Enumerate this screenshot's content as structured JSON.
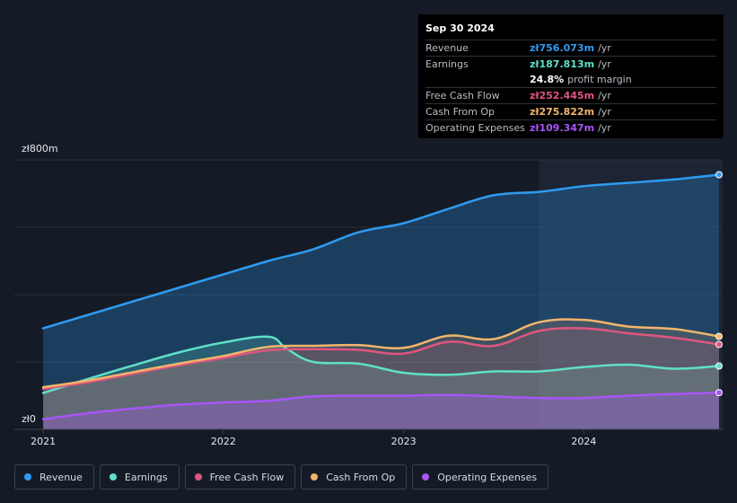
{
  "tooltip": {
    "date": "Sep 30 2024",
    "rows": [
      {
        "label": "Revenue",
        "value": "zł756.073m",
        "unit": "/yr",
        "color": "#2f9bf0"
      },
      {
        "label": "Earnings",
        "value": "zł187.813m",
        "unit": "/yr",
        "color": "#5fe0c8"
      },
      {
        "label": "",
        "value": "24.8%",
        "unit": "profit margin",
        "color": "#ffffff"
      },
      {
        "label": "Free Cash Flow",
        "value": "zł252.445m",
        "unit": "/yr",
        "color": "#e0557f"
      },
      {
        "label": "Cash From Op",
        "value": "zł275.822m",
        "unit": "/yr",
        "color": "#f1b56a"
      },
      {
        "label": "Operating Expenses",
        "value": "zł109.347m",
        "unit": "/yr",
        "color": "#a855f7"
      }
    ]
  },
  "legend": [
    {
      "label": "Revenue",
      "color": "#2f9bf0"
    },
    {
      "label": "Earnings",
      "color": "#5fe0c8"
    },
    {
      "label": "Free Cash Flow",
      "color": "#e0557f"
    },
    {
      "label": "Cash From Op",
      "color": "#f1b56a"
    },
    {
      "label": "Operating Expenses",
      "color": "#a855f7"
    }
  ],
  "chart_data": {
    "type": "area",
    "title": "",
    "xlabel": "",
    "ylabel": "",
    "ylim": [
      0,
      800
    ],
    "y_tick_labels": [
      "zł800m",
      "zł0"
    ],
    "x_ticks": [
      {
        "label": "2021",
        "x": 2021.0
      },
      {
        "label": "2022",
        "x": 2022.0
      },
      {
        "label": "2023",
        "x": 2023.0
      },
      {
        "label": "2024",
        "x": 2024.0
      }
    ],
    "xlim": [
      2020.84,
      2024.77
    ],
    "highlight_from": 2023.75,
    "series": [
      {
        "name": "Revenue",
        "color": "#2f9bf0",
        "x": [
          2021.0,
          2021.25,
          2021.5,
          2021.75,
          2022.0,
          2022.25,
          2022.5,
          2022.75,
          2023.0,
          2023.25,
          2023.5,
          2023.75,
          2024.0,
          2024.25,
          2024.5,
          2024.75
        ],
        "values": [
          300,
          340,
          380,
          420,
          460,
          500,
          535,
          585,
          612,
          655,
          695,
          705,
          722,
          732,
          742,
          756
        ]
      },
      {
        "name": "Earnings",
        "color": "#5fe0c8",
        "x": [
          2021.0,
          2021.25,
          2021.5,
          2021.75,
          2022.0,
          2022.25,
          2022.35,
          2022.5,
          2022.75,
          2023.0,
          2023.25,
          2023.5,
          2023.75,
          2024.0,
          2024.25,
          2024.5,
          2024.75
        ],
        "values": [
          108,
          150,
          190,
          228,
          258,
          275,
          240,
          200,
          195,
          168,
          162,
          172,
          172,
          185,
          192,
          180,
          188
        ]
      },
      {
        "name": "Free Cash Flow",
        "color": "#e0557f",
        "x": [
          2021.0,
          2021.25,
          2021.5,
          2021.75,
          2022.0,
          2022.25,
          2022.5,
          2022.75,
          2023.0,
          2023.25,
          2023.5,
          2023.75,
          2024.0,
          2024.25,
          2024.5,
          2024.75
        ],
        "values": [
          120,
          140,
          165,
          190,
          212,
          235,
          238,
          236,
          225,
          260,
          248,
          292,
          300,
          285,
          272,
          252
        ]
      },
      {
        "name": "Cash From Op",
        "color": "#f1b56a",
        "x": [
          2021.0,
          2021.25,
          2021.5,
          2021.75,
          2022.0,
          2022.25,
          2022.5,
          2022.75,
          2023.0,
          2023.25,
          2023.5,
          2023.75,
          2024.0,
          2024.25,
          2024.5,
          2024.75
        ],
        "values": [
          125,
          145,
          170,
          195,
          218,
          245,
          248,
          250,
          242,
          278,
          268,
          318,
          325,
          305,
          298,
          276
        ]
      },
      {
        "name": "Operating Expenses",
        "color": "#a855f7",
        "x": [
          2021.0,
          2021.25,
          2021.5,
          2021.75,
          2022.0,
          2022.25,
          2022.5,
          2022.75,
          2023.0,
          2023.25,
          2023.5,
          2023.75,
          2024.0,
          2024.25,
          2024.5,
          2024.75
        ],
        "values": [
          30,
          48,
          62,
          73,
          80,
          85,
          98,
          100,
          100,
          102,
          98,
          93,
          93,
          100,
          105,
          109
        ]
      }
    ]
  }
}
